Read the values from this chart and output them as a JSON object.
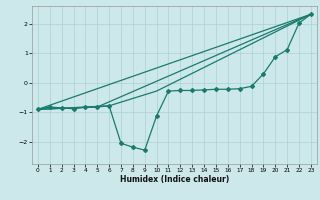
{
  "xlabel": "Humidex (Indice chaleur)",
  "bg_color": "#cce8ea",
  "grid_color": "#aecfd4",
  "line_color": "#1a7a6e",
  "xlim": [
    -0.5,
    23.5
  ],
  "ylim": [
    -2.75,
    2.6
  ],
  "xticks": [
    0,
    1,
    2,
    3,
    4,
    5,
    6,
    7,
    8,
    9,
    10,
    11,
    12,
    13,
    14,
    15,
    16,
    17,
    18,
    19,
    20,
    21,
    22,
    23
  ],
  "yticks": [
    -2,
    -1,
    0,
    1,
    2
  ],
  "line1_x": [
    0,
    1,
    2,
    3,
    4,
    5,
    6,
    7,
    8,
    9,
    10,
    11,
    12,
    13,
    14,
    15,
    16,
    17,
    18,
    19,
    20,
    21,
    22,
    23
  ],
  "line1_y": [
    -0.9,
    -0.82,
    -0.85,
    -0.88,
    -0.82,
    -0.82,
    -0.78,
    -2.05,
    -2.18,
    -2.28,
    -1.12,
    -0.28,
    -0.26,
    -0.26,
    -0.24,
    -0.22,
    -0.22,
    -0.2,
    -0.12,
    0.3,
    0.88,
    1.12,
    2.02,
    2.32
  ],
  "line2_x": [
    0,
    5,
    23
  ],
  "line2_y": [
    -0.9,
    -0.82,
    2.32
  ],
  "line3_x": [
    0,
    6,
    10,
    23
  ],
  "line3_y": [
    -0.9,
    -0.78,
    -0.28,
    2.32
  ],
  "line4_x": [
    0,
    23
  ],
  "line4_y": [
    -0.9,
    2.32
  ]
}
